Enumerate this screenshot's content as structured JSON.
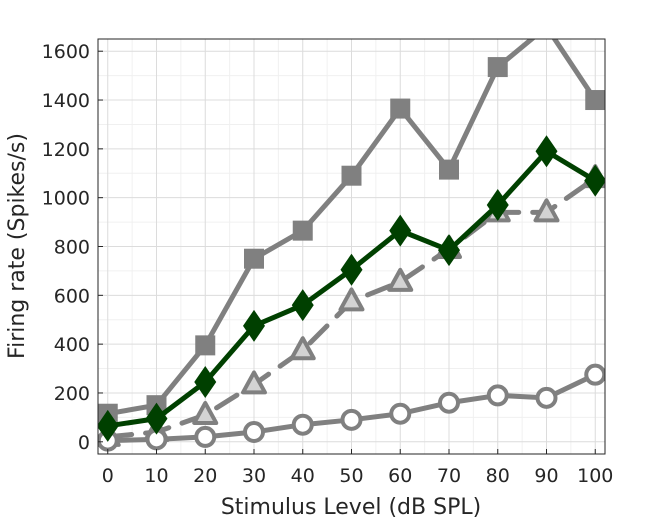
{
  "chart_data": {
    "type": "line",
    "xlabel": "Stimulus Level (dB SPL)",
    "ylabel": "Firing rate (Spikes/s)",
    "xlim": [
      -2,
      102
    ],
    "ylim": [
      -50,
      1650
    ],
    "xticks": [
      0,
      10,
      20,
      30,
      40,
      50,
      60,
      70,
      80,
      90,
      100
    ],
    "yticks": [
      0,
      200,
      400,
      600,
      800,
      1000,
      1200,
      1400,
      1600
    ],
    "x": [
      0,
      10,
      20,
      30,
      40,
      50,
      60,
      70,
      80,
      90,
      100
    ],
    "grid": true,
    "series": [
      {
        "marker": "square",
        "dash": "solid",
        "color": "#808080",
        "values": [
          115,
          150,
          395,
          750,
          865,
          1090,
          1365,
          1115,
          1535,
          1700,
          1400
        ]
      },
      {
        "marker": "triangle",
        "dash": "dashed",
        "color": "#808080",
        "values": [
          20,
          40,
          110,
          235,
          375,
          575,
          655,
          790,
          940,
          940,
          1080
        ]
      },
      {
        "marker": "circle",
        "dash": "solid",
        "color": "#808080",
        "values": [
          5,
          10,
          20,
          40,
          70,
          90,
          115,
          160,
          190,
          180,
          275
        ]
      },
      {
        "marker": "diamond",
        "dash": "solid",
        "color": "#004000",
        "values": [
          65,
          95,
          245,
          475,
          560,
          705,
          865,
          785,
          970,
          1190,
          1070
        ]
      }
    ]
  }
}
